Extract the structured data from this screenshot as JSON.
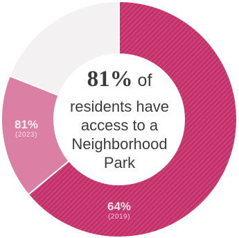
{
  "headline": {
    "percent": "81%",
    "suffix": "of"
  },
  "description_lines": [
    "residents have",
    "access to a",
    "Neighborhood",
    "Park"
  ],
  "chart_data": {
    "type": "pie",
    "segments": [
      {
        "label": "64%",
        "sublabel": "(2019)",
        "value": 64,
        "color": "#c5326b",
        "pattern": "hatched"
      },
      {
        "label": "81%",
        "sublabel": "(2023)",
        "value": 17,
        "color": "#dc7fa4",
        "pattern": "none"
      },
      {
        "label": "",
        "sublabel": "",
        "value": 19,
        "color": "#f3f1f1",
        "pattern": "none"
      }
    ],
    "start_angle_deg": 0,
    "direction": "clockwise"
  }
}
